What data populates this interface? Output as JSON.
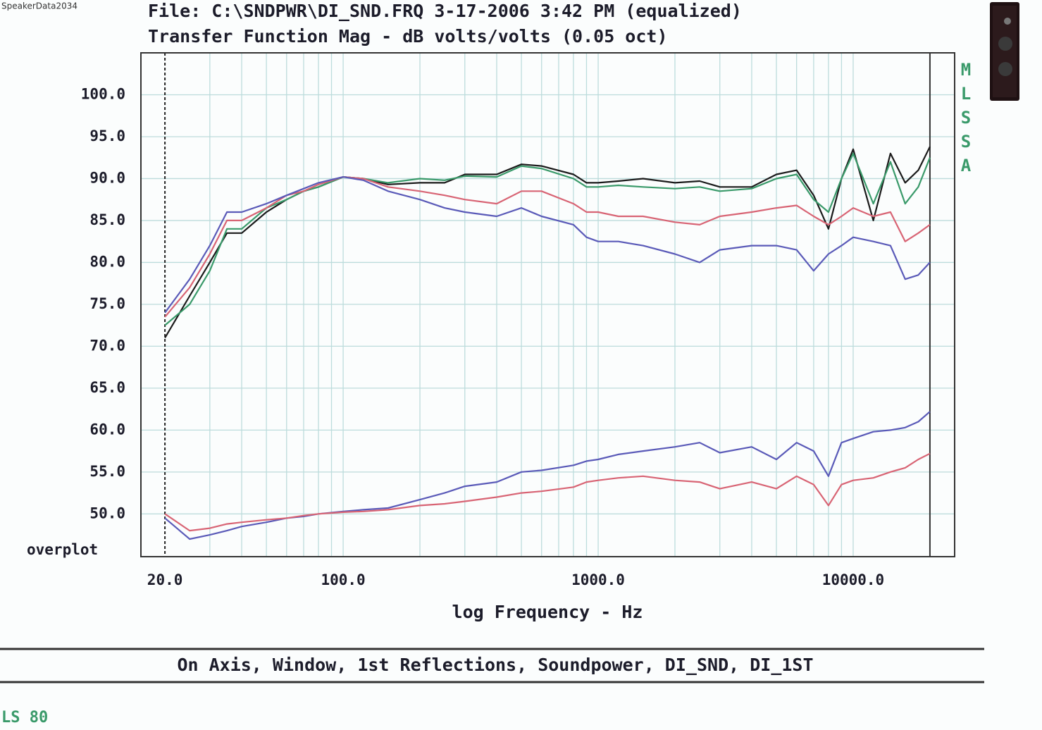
{
  "watermark": "SpeakerData2034",
  "chart_data": {
    "type": "line",
    "title": "File: C:\\SNDPWR\\DI_SND.FRQ 3-17-2006 3:42 PM (equalized)",
    "subtitle": "Transfer Function Mag - dB volts/volts (0.05 oct)",
    "x_label": "log Frequency - Hz",
    "corner_label": "overplot",
    "side_label": "MLSSA",
    "caption": "On Axis, Window, 1st Reflections, Soundpower, DI_SND, DI_1ST",
    "footer": "LS 80",
    "x_log": true,
    "grid": true,
    "xlim": [
      16.1,
      25000
    ],
    "ylim": [
      44.9,
      105
    ],
    "xticks": [
      {
        "value": 20,
        "label": "20.0"
      },
      {
        "value": 100,
        "label": "100.0"
      },
      {
        "value": 1000,
        "label": "1000.0"
      },
      {
        "value": 10000,
        "label": "10000.0"
      }
    ],
    "xminor": [
      30,
      40,
      50,
      60,
      70,
      80,
      90,
      200,
      300,
      400,
      500,
      600,
      700,
      800,
      900,
      2000,
      3000,
      4000,
      5000,
      6000,
      7000,
      8000,
      9000,
      20000
    ],
    "yticks": [
      {
        "value": 50,
        "label": "50.0"
      },
      {
        "value": 55,
        "label": "55.0"
      },
      {
        "value": 60,
        "label": "60.0"
      },
      {
        "value": 65,
        "label": "65.0"
      },
      {
        "value": 70,
        "label": "70.0"
      },
      {
        "value": 75,
        "label": "75.0"
      },
      {
        "value": 80,
        "label": "80.0"
      },
      {
        "value": 85,
        "label": "85.0"
      },
      {
        "value": 90,
        "label": "90.0"
      },
      {
        "value": 95,
        "label": "95.0"
      },
      {
        "value": 100,
        "label": "100.0"
      }
    ],
    "x": [
      20,
      25,
      30,
      35,
      40,
      50,
      60,
      70,
      80,
      100,
      120,
      150,
      200,
      250,
      300,
      400,
      500,
      600,
      800,
      900,
      1000,
      1200,
      1500,
      2000,
      2500,
      3000,
      4000,
      5000,
      6000,
      7000,
      8000,
      9000,
      10000,
      12000,
      14000,
      16000,
      18000,
      20000
    ],
    "series": [
      {
        "color": "#1a1a1a",
        "values": [
          71,
          76,
          80,
          83.5,
          83.5,
          86,
          87.5,
          88.5,
          89,
          90.2,
          90,
          89.3,
          89.5,
          89.5,
          90.5,
          90.5,
          91.7,
          91.5,
          90.5,
          89.5,
          89.5,
          89.7,
          90,
          89.5,
          89.7,
          89,
          89,
          90.5,
          91,
          88,
          84,
          90,
          93.5,
          85,
          93,
          89.5,
          91,
          93.8
        ]
      },
      {
        "color": "#3a9a6a",
        "values": [
          72.5,
          75,
          79,
          84,
          84,
          86.5,
          87.5,
          88.5,
          89,
          90.2,
          90,
          89.5,
          90,
          89.8,
          90.3,
          90.2,
          91.5,
          91.2,
          90,
          89,
          89,
          89.2,
          89,
          88.8,
          89,
          88.5,
          88.8,
          90,
          90.5,
          87.5,
          86,
          90,
          93,
          87,
          92,
          87,
          89,
          92.5
        ]
      },
      {
        "color": "#d86474",
        "values": [
          73.5,
          77,
          81,
          85,
          85,
          86.5,
          88,
          88.5,
          89.3,
          90.2,
          90,
          89,
          88.5,
          88,
          87.5,
          87,
          88.5,
          88.5,
          87,
          86,
          86,
          85.5,
          85.5,
          84.8,
          84.5,
          85.5,
          86,
          86.5,
          86.8,
          85.5,
          84.5,
          85.5,
          86.5,
          85.5,
          86,
          82.5,
          83.5,
          84.5
        ]
      },
      {
        "color": "#5a5ab8",
        "values": [
          74,
          78,
          82,
          86,
          86,
          87,
          88,
          88.8,
          89.5,
          90.2,
          89.8,
          88.5,
          87.5,
          86.5,
          86,
          85.5,
          86.5,
          85.5,
          84.5,
          83,
          82.5,
          82.5,
          82,
          81,
          80,
          81.5,
          82,
          82,
          81.5,
          79,
          81,
          82,
          83,
          82.5,
          82,
          78,
          78.5,
          80
        ]
      },
      {
        "color": "#5a5ab8",
        "values": [
          49.5,
          47,
          47.5,
          48,
          48.5,
          49,
          49.5,
          49.7,
          50,
          50.3,
          50.5,
          50.7,
          51.7,
          52.5,
          53.3,
          53.8,
          55,
          55.2,
          55.8,
          56.3,
          56.5,
          57.1,
          57.5,
          58,
          58.5,
          57.3,
          58,
          56.5,
          58.5,
          57.5,
          54.5,
          58.5,
          59,
          59.8,
          60,
          60.3,
          61,
          62.2
        ]
      },
      {
        "color": "#d86474",
        "values": [
          50,
          48,
          48.3,
          48.8,
          49,
          49.3,
          49.5,
          49.8,
          50,
          50.2,
          50.3,
          50.5,
          51,
          51.2,
          51.5,
          52,
          52.5,
          52.7,
          53.2,
          53.8,
          54,
          54.3,
          54.5,
          54,
          53.8,
          53,
          53.8,
          53,
          54.5,
          53.5,
          51,
          53.5,
          54,
          54.3,
          55,
          55.5,
          56.5,
          57.2
        ]
      }
    ]
  }
}
